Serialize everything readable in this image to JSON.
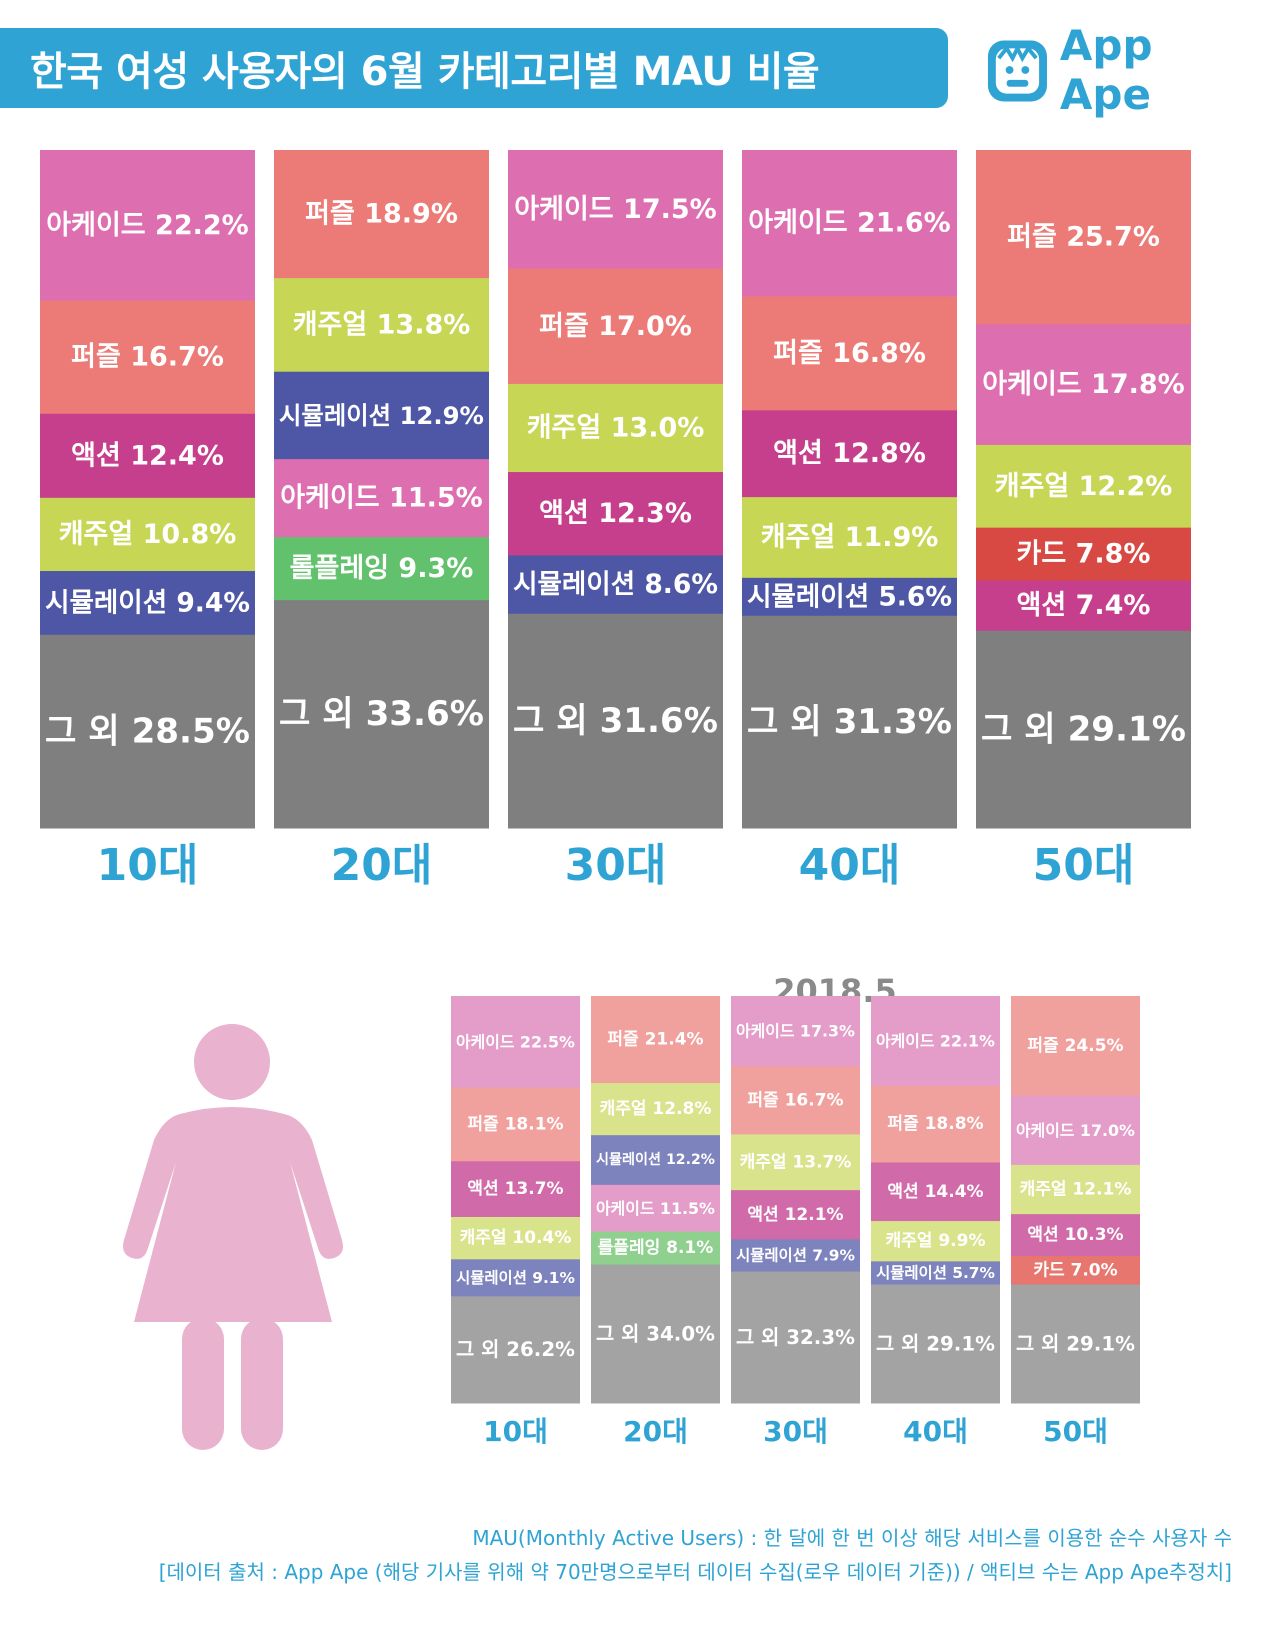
{
  "header": {
    "title": "한국 여성 사용자의 6월 카테고리별 MAU 비율",
    "logo_text": "App Ape"
  },
  "colors": {
    "accent": "#2ea3d4",
    "아케이드": "#dd6fb0",
    "퍼즐": "#ec7b77",
    "액션": "#c63f8c",
    "캐주얼": "#c7d655",
    "시뮬레이션": "#4e57a5",
    "롤플레잉": "#62c16c",
    "카드": "#d94943",
    "그 외": "#7f7f7f"
  },
  "sub_colors": {
    "아케이드": "#e49cc9",
    "퍼즐": "#f0a19d",
    "액션": "#d06aa8",
    "캐주얼": "#d9e38c",
    "시뮬레이션": "#7d83bd",
    "롤플레잉": "#8fd08e",
    "카드": "#e6766e",
    "그 외": "#a3a3a3"
  },
  "chart_data": [
    {
      "type": "bar",
      "stacked": true,
      "period": "6월",
      "categories": [
        "10대",
        "20대",
        "30대",
        "40대",
        "50대"
      ],
      "columns": [
        [
          [
            "아케이드",
            22.2
          ],
          [
            "퍼즐",
            16.7
          ],
          [
            "액션",
            12.4
          ],
          [
            "캐주얼",
            10.8
          ],
          [
            "시뮬레이션",
            9.4
          ],
          [
            "그 외",
            28.5
          ]
        ],
        [
          [
            "퍼즐",
            18.9
          ],
          [
            "캐주얼",
            13.8
          ],
          [
            "시뮬레이션",
            12.9
          ],
          [
            "아케이드",
            11.5
          ],
          [
            "롤플레잉",
            9.3
          ],
          [
            "그 외",
            33.6
          ]
        ],
        [
          [
            "아케이드",
            17.5
          ],
          [
            "퍼즐",
            17.0
          ],
          [
            "캐주얼",
            13.0
          ],
          [
            "액션",
            12.3
          ],
          [
            "시뮬레이션",
            8.6
          ],
          [
            "그 외",
            31.6
          ]
        ],
        [
          [
            "아케이드",
            21.6
          ],
          [
            "퍼즐",
            16.8
          ],
          [
            "액션",
            12.8
          ],
          [
            "캐주얼",
            11.9
          ],
          [
            "시뮬레이션",
            5.6
          ],
          [
            "그 외",
            31.3
          ]
        ],
        [
          [
            "퍼즐",
            25.7
          ],
          [
            "아케이드",
            17.8
          ],
          [
            "캐주얼",
            12.2
          ],
          [
            "카드",
            7.8
          ],
          [
            "액션",
            7.4
          ],
          [
            "그 외",
            29.1
          ]
        ]
      ]
    },
    {
      "type": "bar",
      "stacked": true,
      "title": "2018.5",
      "categories": [
        "10대",
        "20대",
        "30대",
        "40대",
        "50대"
      ],
      "columns": [
        [
          [
            "아케이드",
            22.5
          ],
          [
            "퍼즐",
            18.1
          ],
          [
            "액션",
            13.7
          ],
          [
            "캐주얼",
            10.4
          ],
          [
            "시뮬레이션",
            9.1
          ],
          [
            "그 외",
            26.2
          ]
        ],
        [
          [
            "퍼즐",
            21.4
          ],
          [
            "캐주얼",
            12.8
          ],
          [
            "시뮬레이션",
            12.2
          ],
          [
            "아케이드",
            11.5
          ],
          [
            "롤플레잉",
            8.1
          ],
          [
            "그 외",
            34.0
          ]
        ],
        [
          [
            "아케이드",
            17.3
          ],
          [
            "퍼즐",
            16.7
          ],
          [
            "캐주얼",
            13.7
          ],
          [
            "액션",
            12.1
          ],
          [
            "시뮬레이션",
            7.9
          ],
          [
            "그 외",
            32.3
          ]
        ],
        [
          [
            "아케이드",
            22.1
          ],
          [
            "퍼즐",
            18.8
          ],
          [
            "액션",
            14.4
          ],
          [
            "캐주얼",
            9.9
          ],
          [
            "시뮬레이션",
            5.7
          ],
          [
            "그 외",
            29.1
          ]
        ],
        [
          [
            "퍼즐",
            24.5
          ],
          [
            "아케이드",
            17.0
          ],
          [
            "캐주얼",
            12.1
          ],
          [
            "액션",
            10.3
          ],
          [
            "카드",
            7.0
          ],
          [
            "그 외",
            29.1
          ]
        ]
      ]
    }
  ],
  "footnotes": {
    "line1": "MAU(Monthly Active Users) : 한 달에 한 번 이상 해당 서비스를 이용한 순수 사용자 수",
    "line2": "[데이터 출처 : App Ape (해당 기사를 위해 약 70만명으로부터 데이터 수집(로우 데이터 기준)) / 액티브 수는 App Ape추정치]"
  }
}
